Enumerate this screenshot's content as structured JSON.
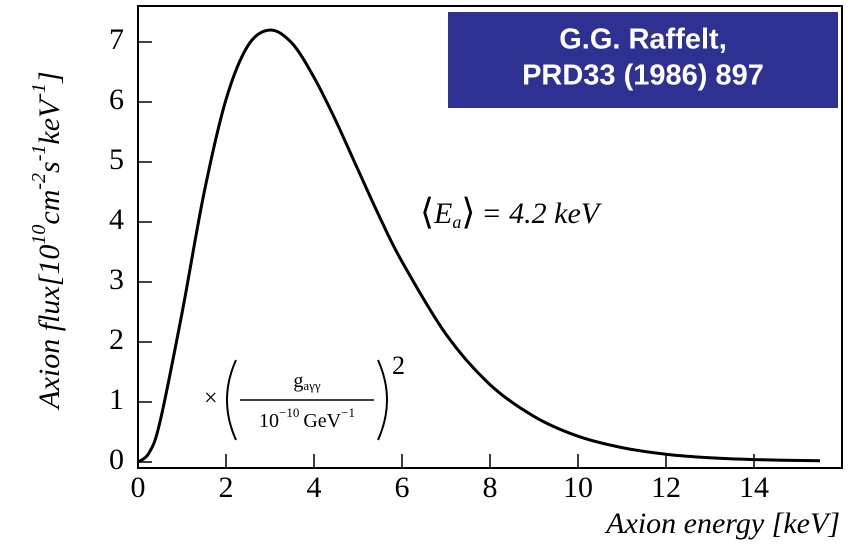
{
  "chart_data": {
    "type": "line",
    "x_label": "Axion energy [keV]",
    "y_label_parts": [
      "Axion flux[",
      "10",
      "10",
      "cm",
      "-2",
      "s",
      "-1",
      "keV",
      "-1",
      "]"
    ],
    "box_lines": [
      "G.G. Raffelt,",
      "PRD33 (1986) 897"
    ],
    "mean_annotation": {
      "open": "⟨",
      "symbol": "E",
      "sub": "a",
      "close": "⟩",
      "text": "= 4.2 keV"
    },
    "factor_annotation": {
      "times": "×",
      "numerator": "g",
      "numerator_sub": "aγγ",
      "denominator": "10",
      "denominator_exp": "−10",
      "denominator_unit": "GeV",
      "unit_exp": "−1",
      "power": "2"
    },
    "x": [
      0,
      0.25,
      0.5,
      1,
      1.5,
      2,
      2.5,
      3,
      3.5,
      4,
      4.5,
      5,
      5.5,
      6,
      7,
      8,
      9,
      10,
      11,
      12,
      13,
      14,
      15.5
    ],
    "series": [
      {
        "color": "#000000",
        "values": [
          0,
          0.15,
          0.67,
          2.48,
          4.48,
          6.04,
          6.94,
          7.2,
          6.98,
          6.41,
          5.68,
          4.87,
          4.07,
          3.34,
          2.13,
          1.29,
          0.76,
          0.43,
          0.24,
          0.13,
          0.07,
          0.04,
          0.02
        ]
      }
    ],
    "xlim": [
      0,
      16
    ],
    "ylim": [
      -0.1,
      7.6
    ],
    "xticks": [
      0,
      2,
      4,
      6,
      8,
      10,
      12,
      14
    ],
    "yticks": [
      0,
      1,
      2,
      3,
      4,
      5,
      6,
      7
    ],
    "box_color": "#2e3192"
  }
}
